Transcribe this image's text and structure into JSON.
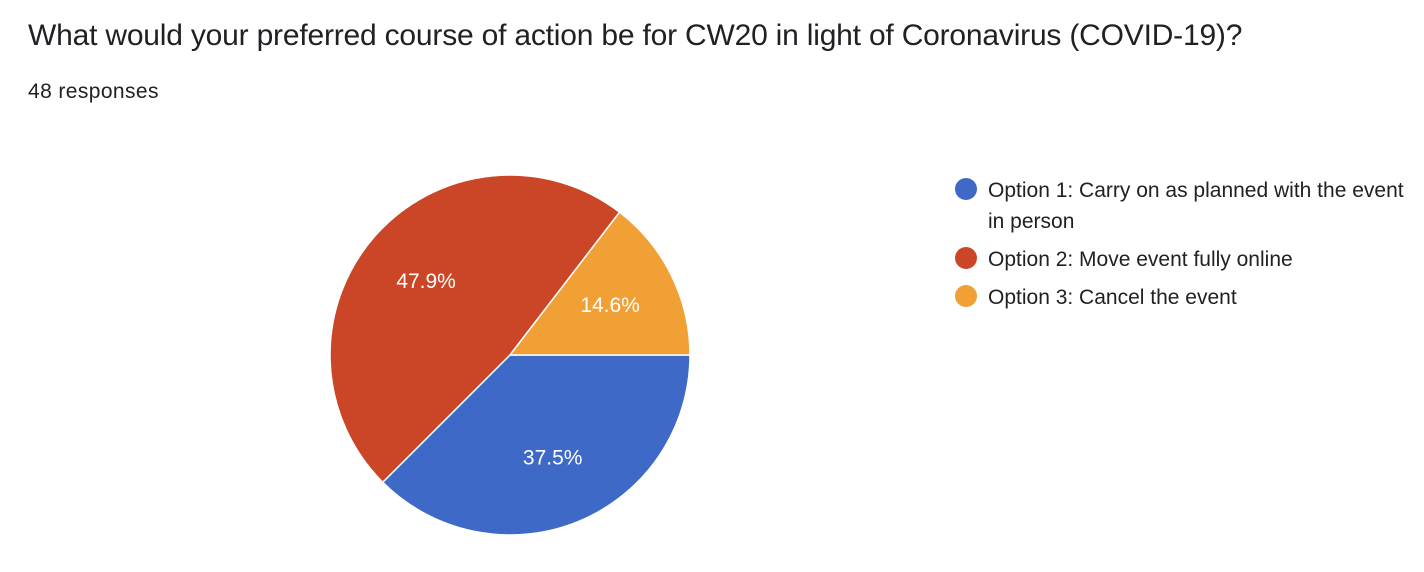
{
  "header": {
    "title": "What would your preferred course of action be for CW20 in light of Coronavirus (COVID-19)?",
    "responses": "48 responses"
  },
  "chart_data": {
    "type": "pie",
    "title": "What would your preferred course of action be for CW20 in light of Coronavirus (COVID-19)?",
    "total_responses": 48,
    "slices": [
      {
        "label": "Option 1: Carry on as planned with the event in person",
        "value": 18,
        "percent_label": "37.5%",
        "color": "#3f69c6"
      },
      {
        "label": "Option 2: Move event fully online",
        "value": 23,
        "percent_label": "47.9%",
        "color": "#cb4627"
      },
      {
        "label": "Option 3: Cancel the event",
        "value": 7,
        "percent_label": "14.6%",
        "color": "#f1a036"
      }
    ],
    "legend_position": "right"
  }
}
